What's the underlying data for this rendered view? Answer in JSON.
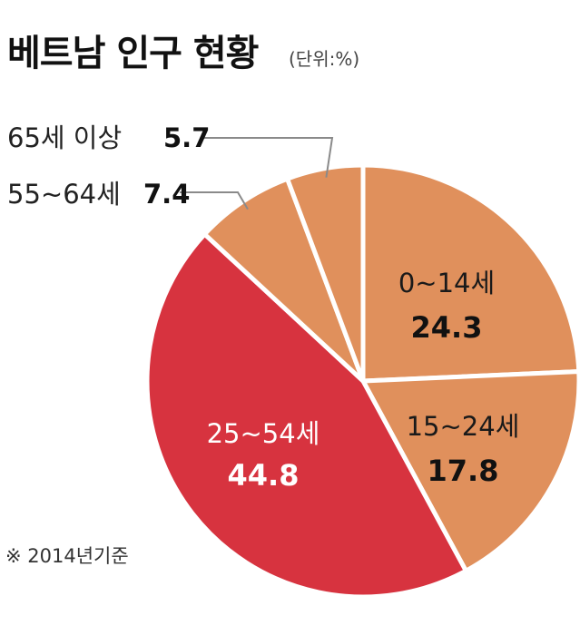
{
  "chart_data": {
    "type": "pie",
    "title": "베트남 인구 현황",
    "unit_label": "(단위:%)",
    "slices": [
      {
        "label": "0~14세",
        "value": 24.3,
        "value_label": "24.3",
        "color": "#e0905c"
      },
      {
        "label": "15~24세",
        "value": 17.8,
        "value_label": "17.8",
        "color": "#e0905c"
      },
      {
        "label": "25~54세",
        "value": 44.8,
        "value_label": "44.8",
        "color": "#d7333f"
      },
      {
        "label": "55~64세",
        "value": 7.4,
        "value_label": "7.4",
        "color": "#e0905c"
      },
      {
        "label": "65세 이상",
        "value": 5.7,
        "value_label": "5.7",
        "color": "#e0905c"
      }
    ],
    "footnote": "※ 2014년기준"
  }
}
